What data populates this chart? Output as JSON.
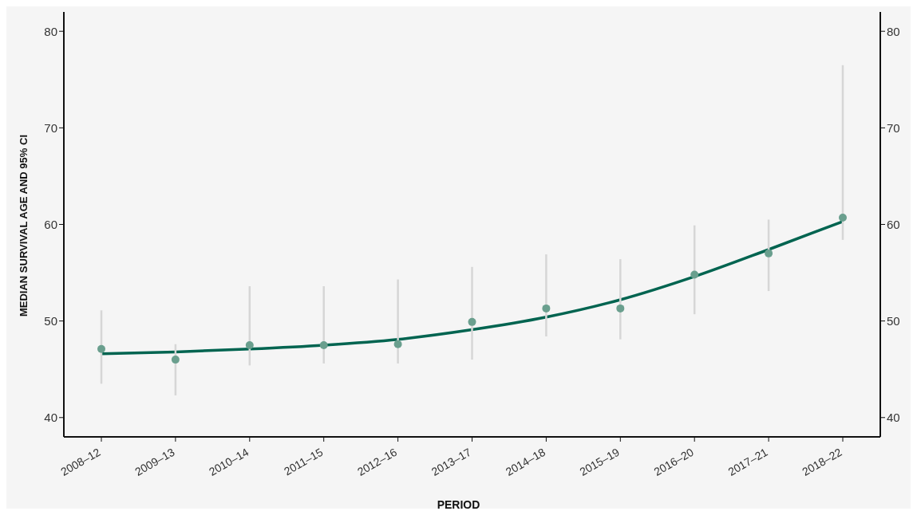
{
  "chart_data": {
    "type": "scatter",
    "xlabel": "PERIOD",
    "ylabel": "MEDIAN SURVIVAL AGE AND 95% CI",
    "categories": [
      "2008–12",
      "2009–13",
      "2010–14",
      "2011–15",
      "2012–16",
      "2013–17",
      "2014–18",
      "2015–19",
      "2016–20",
      "2017–21",
      "2018–22"
    ],
    "series": [
      {
        "type": "scatter",
        "color": "#6a9f8e",
        "values": [
          47.1,
          46.0,
          47.5,
          47.5,
          47.6,
          49.9,
          51.3,
          51.3,
          54.8,
          57.0,
          60.7
        ],
        "errors": [
          [
            43.5,
            51.1
          ],
          [
            42.3,
            47.6
          ],
          [
            45.4,
            53.6
          ],
          [
            45.6,
            53.6
          ],
          [
            45.6,
            54.3
          ],
          [
            46.0,
            55.6
          ],
          [
            48.4,
            56.9
          ],
          [
            48.1,
            56.4
          ],
          [
            50.7,
            59.9
          ],
          [
            53.1,
            60.5
          ],
          [
            58.4,
            76.5
          ]
        ]
      },
      {
        "type": "line",
        "color": "#006450",
        "values": [
          46.6,
          46.8,
          47.1,
          47.5,
          48.1,
          49.1,
          50.4,
          52.2,
          54.6,
          57.4,
          60.3
        ]
      }
    ],
    "ylim": [
      38,
      82
    ],
    "yticks": [
      40,
      50,
      60,
      70,
      80
    ],
    "y2lim": [
      38,
      82
    ],
    "y2ticks": [
      40,
      50,
      60,
      70,
      80
    ],
    "grid": false,
    "legend": false
  }
}
